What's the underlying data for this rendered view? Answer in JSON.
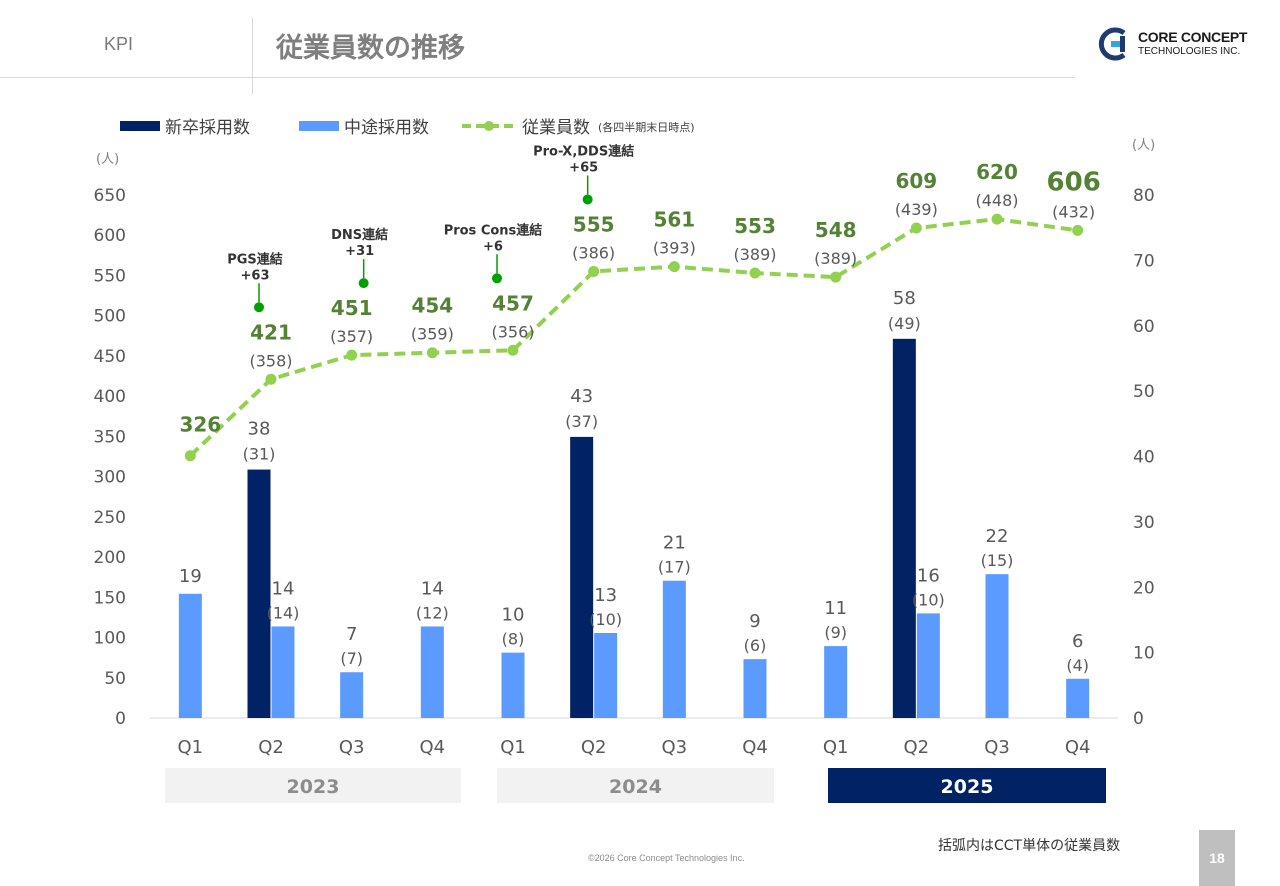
{
  "header": {
    "section": "KPI",
    "title": "従業員数の推移",
    "logo_line1": "CORE CONCEPT",
    "logo_line2": "TECHNOLOGIES INC."
  },
  "footer": {
    "note": "括弧内はCCT単体の従業員数",
    "copyright": "©2026 Core Concept Technologies Inc.",
    "page": "18"
  },
  "colors": {
    "new_grad": "#002366",
    "mid_career": "#5b9bff",
    "employees": "#92d050",
    "employee_label": "#548235",
    "annotation_dot": "#00a000"
  },
  "chart_data": {
    "type": "bar",
    "legend": {
      "new_grad": "新卒採用数",
      "mid_career": "中途採用数",
      "employees": "従業員数",
      "employees_note": "(各四半期末日時点)"
    },
    "left_unit": "(人)",
    "right_unit": "(人)",
    "left_axis": {
      "min": 0,
      "max": 650,
      "step": 50
    },
    "right_axis": {
      "min": 0,
      "max": 80,
      "step": 10
    },
    "categories": [
      "Q1",
      "Q2",
      "Q3",
      "Q4",
      "Q1",
      "Q2",
      "Q3",
      "Q4",
      "Q1",
      "Q2",
      "Q3",
      "Q4"
    ],
    "years": [
      {
        "label": "2023",
        "highlight": false
      },
      {
        "label": "2024",
        "highlight": false
      },
      {
        "label": "2025",
        "highlight": true
      }
    ],
    "series": [
      {
        "name": "従業員数",
        "type": "line",
        "axis": "left",
        "values": [
          326,
          421,
          451,
          454,
          457,
          555,
          561,
          553,
          548,
          609,
          620,
          606
        ],
        "labels": [
          "326",
          "421",
          "451",
          "454",
          "457",
          "555",
          "561",
          "553",
          "548",
          "609",
          "620",
          "606"
        ],
        "sub_labels": [
          "",
          "(358)",
          "(357)",
          "(359)",
          "(356)",
          "(386)",
          "(393)",
          "(389)",
          "(389)",
          "(439)",
          "(448)",
          "(432)"
        ]
      },
      {
        "name": "新卒採用数",
        "type": "bar",
        "axis": "right",
        "values": [
          null,
          38,
          null,
          null,
          null,
          43,
          null,
          null,
          null,
          58,
          null,
          null
        ],
        "labels": [
          "",
          "38",
          "",
          "",
          "",
          "43",
          "",
          "",
          "",
          "58",
          "",
          ""
        ],
        "sub_labels": [
          "",
          "(31)",
          "",
          "",
          "",
          "(37)",
          "",
          "",
          "",
          "(49)",
          "",
          ""
        ]
      },
      {
        "name": "中途採用数",
        "type": "bar",
        "axis": "right",
        "values": [
          19,
          14,
          7,
          14,
          10,
          13,
          21,
          9,
          11,
          16,
          22,
          6
        ],
        "labels": [
          "19",
          "14",
          "7",
          "14",
          "10",
          "13",
          "21",
          "9",
          "11",
          "16",
          "22",
          "6"
        ],
        "sub_labels": [
          "",
          "(14)",
          "(7)",
          "(12)",
          "(8)",
          "(10)",
          "(17)",
          "(6)",
          "(9)",
          "(10)",
          "(15)",
          "(4)"
        ]
      }
    ],
    "annotations": [
      {
        "index": 1,
        "text": "PGS連結",
        "delta": "+63"
      },
      {
        "index": 2,
        "text": "DNS連結",
        "delta": "+31"
      },
      {
        "index": 4,
        "text": "Pros Cons連結",
        "delta": "+6"
      },
      {
        "index": 5,
        "text": "Pro-X,DDS連結",
        "delta": "+65"
      }
    ]
  }
}
